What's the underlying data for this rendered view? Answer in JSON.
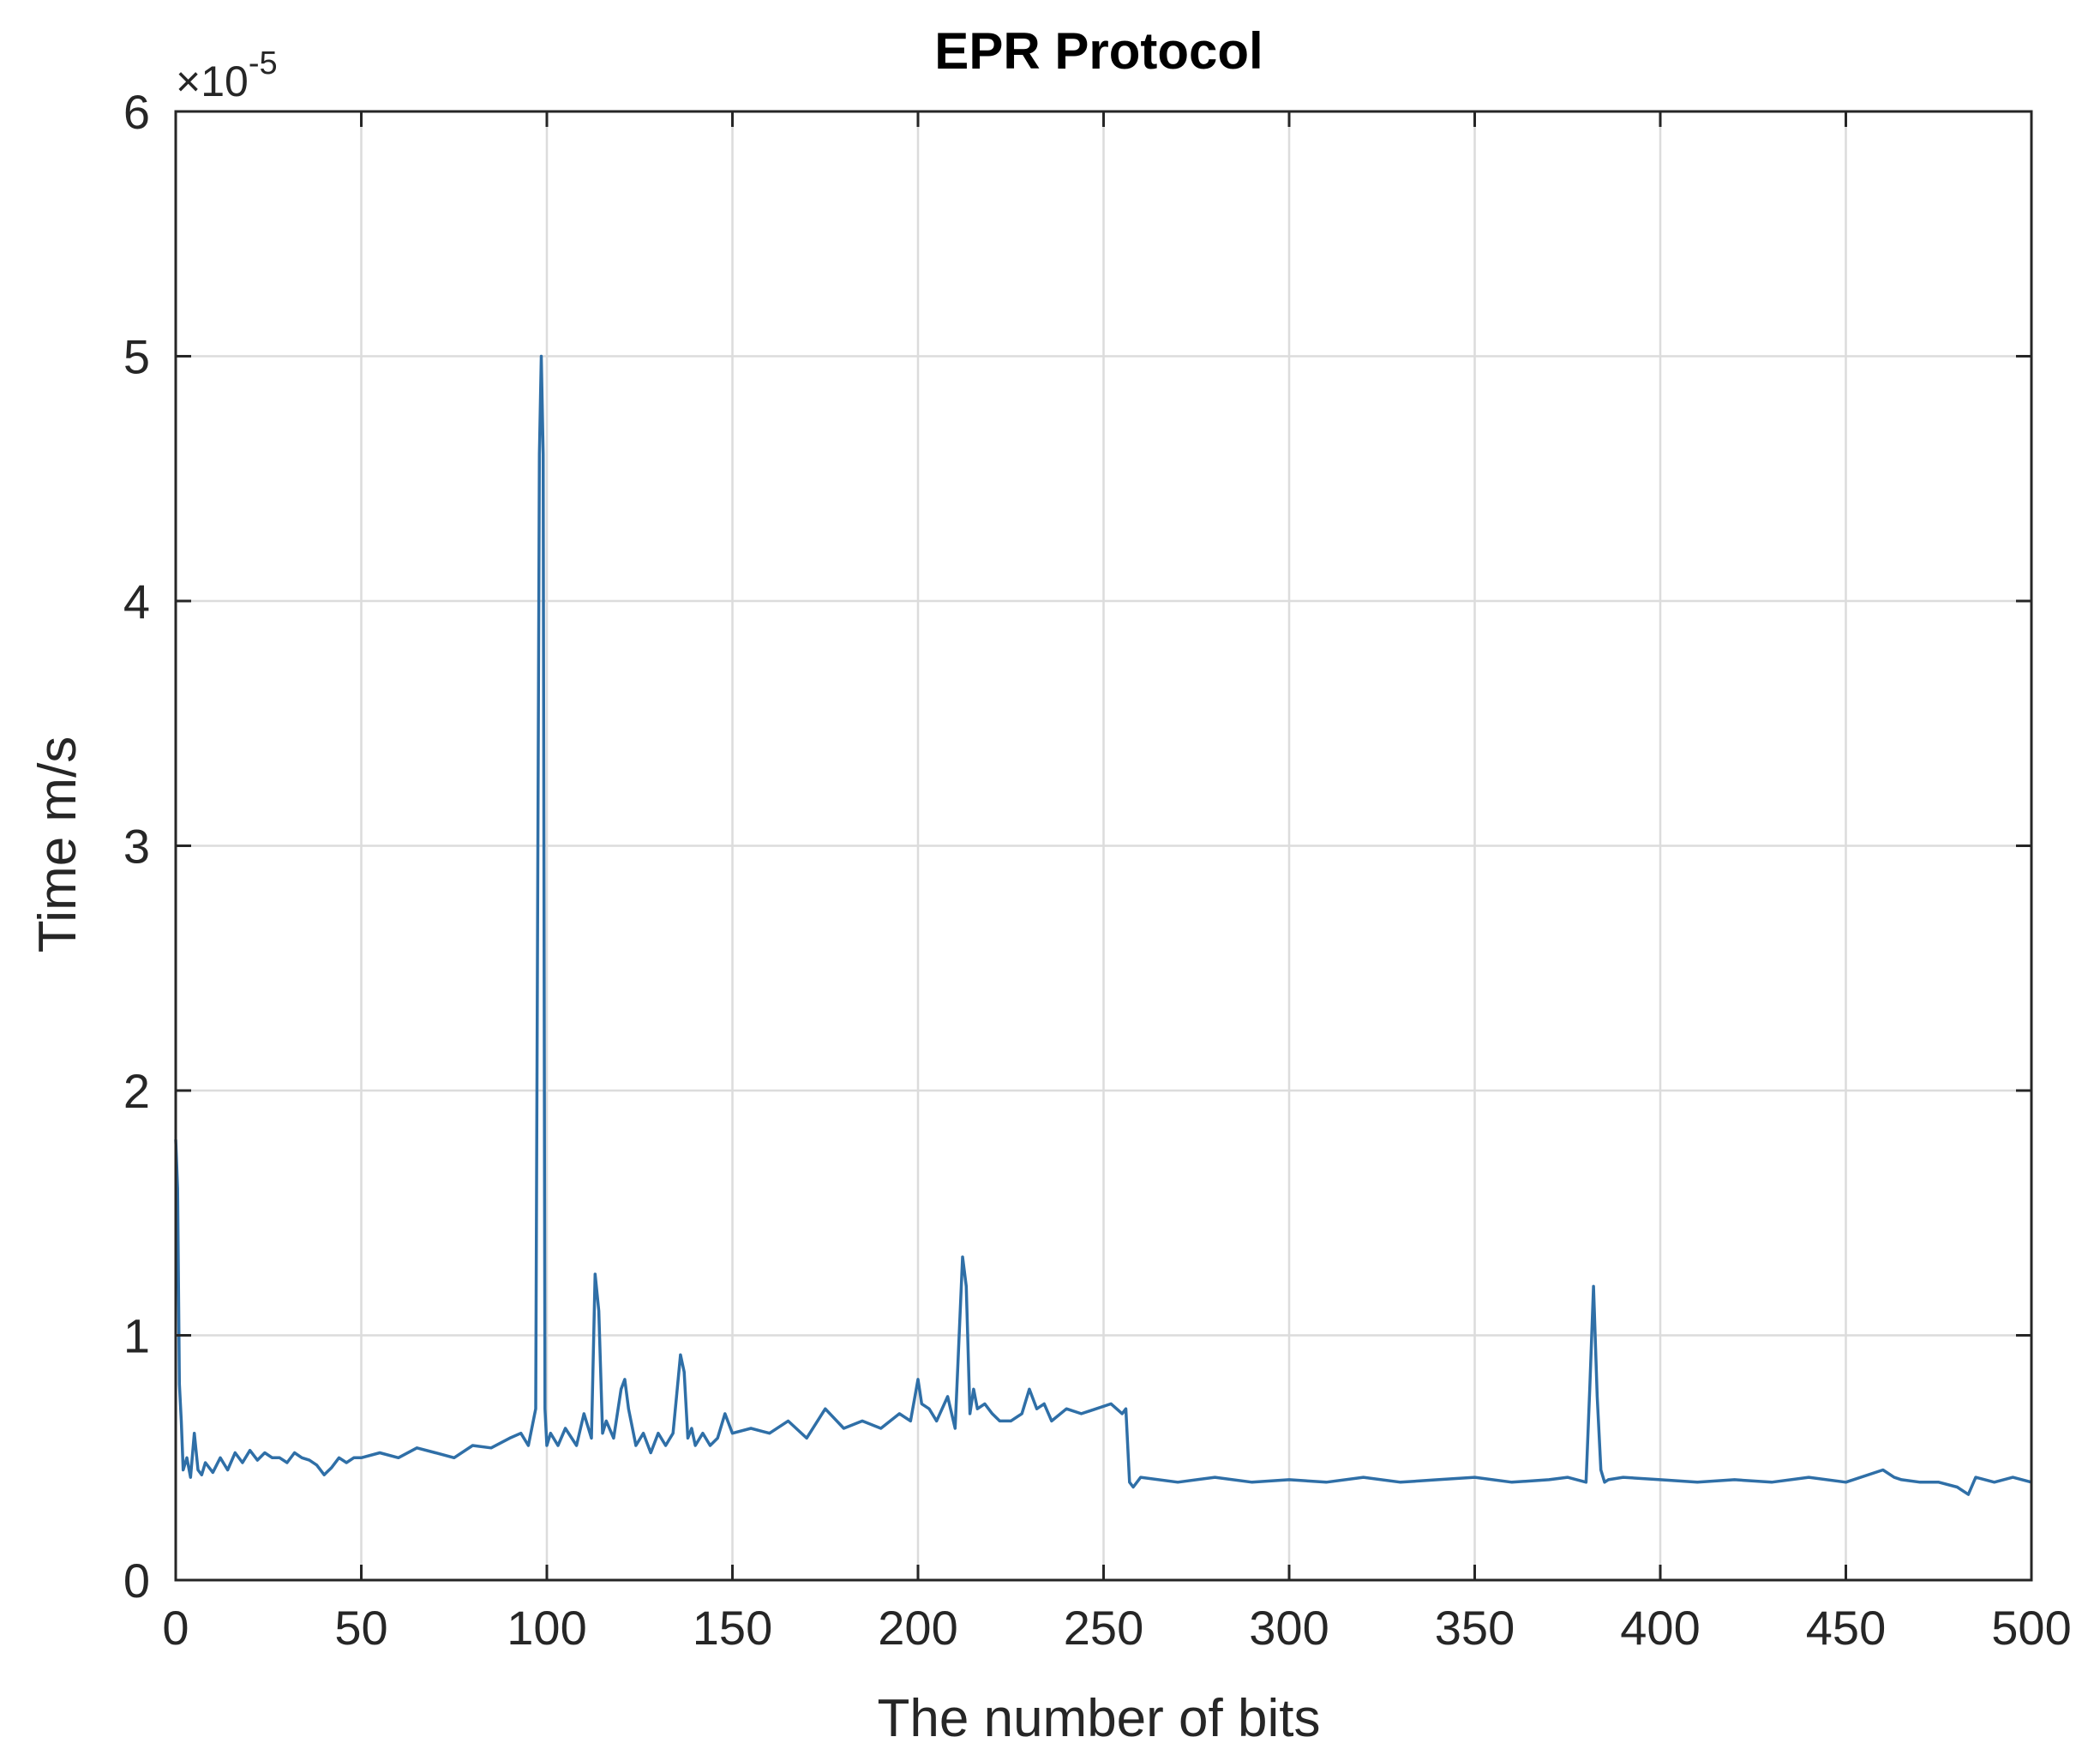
{
  "chart_data": {
    "type": "line",
    "title": "EPR Protocol",
    "xlabel": "The number of bits",
    "ylabel": "Time m/s",
    "exponent_label": {
      "base": "×10",
      "power": "-5"
    },
    "xlim": [
      0,
      500
    ],
    "ylim": [
      0,
      6
    ],
    "y_scale_multiplier": 1e-05,
    "xticks": [
      0,
      50,
      100,
      150,
      200,
      250,
      300,
      350,
      400,
      450,
      500
    ],
    "yticks": [
      0,
      1,
      2,
      3,
      4,
      5,
      6
    ],
    "grid": true,
    "line_color": "#2f6fa7",
    "series": [
      {
        "x": [
          0,
          0.5,
          1,
          1.5,
          2,
          3,
          4,
          5,
          6,
          7,
          8,
          10,
          12,
          14,
          16,
          18,
          20,
          22,
          24,
          26,
          28,
          30,
          32,
          34,
          36,
          38,
          40,
          42,
          44,
          46,
          48,
          50,
          55,
          60,
          65,
          70,
          75,
          80,
          85,
          90,
          93,
          95,
          97,
          98,
          98.5,
          99,
          99.5,
          100,
          101,
          103,
          105,
          108,
          110,
          112,
          113,
          114,
          115,
          116,
          118,
          120,
          121,
          122,
          124,
          126,
          128,
          130,
          132,
          134,
          136,
          137,
          138,
          139,
          140,
          142,
          144,
          146,
          148,
          150,
          155,
          160,
          165,
          170,
          175,
          180,
          185,
          190,
          195,
          198,
          200,
          201,
          203,
          205,
          208,
          210,
          212,
          213,
          214,
          215,
          216,
          218,
          220,
          222,
          225,
          228,
          230,
          232,
          234,
          236,
          240,
          244,
          248,
          252,
          255,
          256,
          257,
          258,
          260,
          270,
          280,
          290,
          300,
          310,
          320,
          330,
          340,
          350,
          360,
          370,
          375,
          380,
          381,
          382,
          383,
          384,
          385,
          386,
          390,
          400,
          410,
          420,
          430,
          440,
          450,
          460,
          463,
          465,
          470,
          475,
          480,
          483,
          485,
          490,
          495,
          500
        ],
        "y": [
          1.8,
          1.6,
          0.8,
          0.65,
          0.45,
          0.5,
          0.42,
          0.6,
          0.45,
          0.43,
          0.48,
          0.44,
          0.5,
          0.45,
          0.52,
          0.48,
          0.53,
          0.49,
          0.52,
          0.5,
          0.5,
          0.48,
          0.52,
          0.5,
          0.49,
          0.47,
          0.43,
          0.46,
          0.5,
          0.48,
          0.5,
          0.5,
          0.52,
          0.5,
          0.54,
          0.52,
          0.5,
          0.55,
          0.54,
          0.58,
          0.6,
          0.55,
          0.7,
          4.6,
          5.0,
          4.6,
          0.7,
          0.55,
          0.6,
          0.55,
          0.62,
          0.55,
          0.68,
          0.58,
          1.25,
          1.1,
          0.6,
          0.65,
          0.58,
          0.78,
          0.82,
          0.7,
          0.55,
          0.6,
          0.52,
          0.6,
          0.55,
          0.6,
          0.92,
          0.85,
          0.58,
          0.62,
          0.55,
          0.6,
          0.55,
          0.58,
          0.68,
          0.6,
          0.62,
          0.6,
          0.65,
          0.58,
          0.7,
          0.62,
          0.65,
          0.62,
          0.68,
          0.65,
          0.82,
          0.72,
          0.7,
          0.65,
          0.75,
          0.62,
          1.32,
          1.2,
          0.68,
          0.78,
          0.7,
          0.72,
          0.68,
          0.65,
          0.65,
          0.68,
          0.78,
          0.7,
          0.72,
          0.65,
          0.7,
          0.68,
          0.7,
          0.72,
          0.68,
          0.7,
          0.4,
          0.38,
          0.42,
          0.4,
          0.42,
          0.4,
          0.41,
          0.4,
          0.42,
          0.4,
          0.41,
          0.42,
          0.4,
          0.41,
          0.42,
          0.4,
          0.78,
          1.2,
          0.75,
          0.45,
          0.4,
          0.41,
          0.42,
          0.41,
          0.4,
          0.41,
          0.4,
          0.42,
          0.4,
          0.45,
          0.42,
          0.41,
          0.4,
          0.4,
          0.38,
          0.35,
          0.42,
          0.4,
          0.42,
          0.4
        ]
      }
    ]
  }
}
